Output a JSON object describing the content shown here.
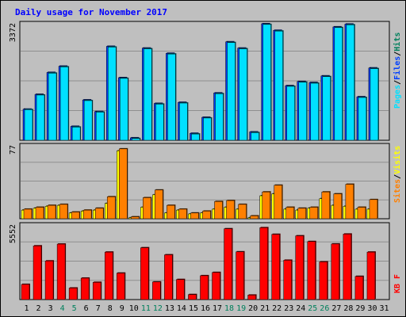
{
  "chart_data": {
    "type": "bar",
    "title": "Daily usage for November 2017",
    "categories": [
      "1",
      "2",
      "3",
      "4",
      "5",
      "6",
      "7",
      "8",
      "9",
      "10",
      "11",
      "12",
      "13",
      "14",
      "15",
      "16",
      "17",
      "18",
      "19",
      "20",
      "21",
      "22",
      "23",
      "24",
      "25",
      "26",
      "27",
      "28",
      "29",
      "30",
      "31"
    ],
    "weekend_days": [
      "4",
      "5",
      "11",
      "12",
      "18",
      "19",
      "25",
      "26"
    ],
    "panels": [
      {
        "max_label": "3372",
        "ylim": [
          0,
          3372
        ],
        "series": [
          {
            "name": "Hits",
            "color": "#00805c",
            "values": [
              0,
              0,
              0,
              0,
              0,
              0,
              0,
              0,
              0,
              0,
              0,
              0,
              0,
              0,
              0,
              0,
              0,
              0,
              0,
              0,
              0,
              0,
              0,
              0,
              0,
              0,
              0,
              0,
              0,
              0,
              0
            ]
          },
          {
            "name": "Files",
            "color": "#0040ff",
            "values": [
              895,
              1320,
              1950,
              2130,
              400,
              1160,
              825,
              2700,
              1800,
              70,
              2650,
              1060,
              2500,
              1090,
              200,
              660,
              1360,
              2830,
              2650,
              240,
              3350,
              3160,
              1570,
              1690,
              1660,
              1850,
              3260,
              3340,
              1250,
              2080,
              0
            ]
          },
          {
            "name": "Pages",
            "color": "#00e0ff",
            "values": [
              880,
              1300,
              1930,
              2110,
              380,
              1140,
              810,
              2680,
              1780,
              50,
              2630,
              1040,
              2480,
              1070,
              180,
              640,
              1340,
              2810,
              2630,
              220,
              3330,
              3140,
              1550,
              1670,
              1640,
              1830,
              3240,
              3320,
              1230,
              2060,
              0
            ]
          }
        ]
      },
      {
        "max_label": "77",
        "ylim": [
          0,
          77
        ],
        "series": [
          {
            "name": "Visits",
            "color": "#ffff00",
            "values": [
              9,
              11,
              13,
              14,
              6,
              8,
              9,
              16,
              71,
              1,
              12,
              25,
              6,
              9,
              5,
              6,
              10,
              12,
              10,
              1,
              24,
              26,
              10,
              9,
              11,
              21,
              14,
              13,
              10,
              10,
              0
            ]
          },
          {
            "name": "Sites",
            "color": "#ff8000",
            "values": [
              10,
              12,
              14,
              15,
              7,
              9,
              11,
              23,
              73,
              2,
              22,
              30,
              14,
              10,
              6,
              8,
              18,
              19,
              15,
              3,
              28,
              35,
              12,
              11,
              12,
              28,
              26,
              36,
              12,
              20,
              0
            ]
          }
        ]
      },
      {
        "max_label": "5552",
        "ylim": [
          0,
          5552
        ],
        "series": [
          {
            "name": "KB F",
            "color": "#ff0000",
            "values": [
              1120,
              3960,
              2850,
              4090,
              850,
              1580,
              1270,
              3500,
              1950,
              0,
              3820,
              1300,
              3300,
              1480,
              370,
              1760,
              2000,
              5220,
              3520,
              330,
              5300,
              4810,
              2900,
              4700,
              4280,
              2780,
              4100,
              4830,
              1710,
              3500,
              0
            ]
          }
        ]
      }
    ]
  }
}
